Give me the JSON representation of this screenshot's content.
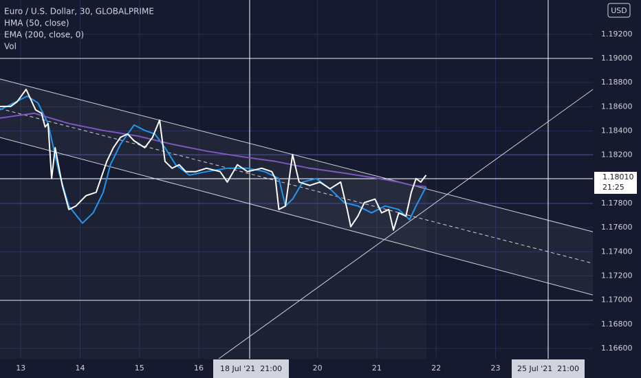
{
  "chart_data": {
    "type": "line",
    "title": "Euro / U.S. Dollar, 30, GLOBALPRIME",
    "volume_label": "Vol",
    "currency": "USD",
    "last_price": "1.18010",
    "countdown": "21:25",
    "crosshair_labels": [
      "18 Jul '21  21:00",
      "25 Jul '21  21:00"
    ],
    "xlim": [
      -0.35,
      9.64
    ],
    "xticks": [
      {
        "value": 0,
        "label": "13"
      },
      {
        "value": 1,
        "label": "14"
      },
      {
        "value": 2,
        "label": "15"
      },
      {
        "value": 3,
        "label": "16"
      },
      {
        "value": 5,
        "label": "20"
      },
      {
        "value": 6,
        "label": "21"
      },
      {
        "value": 7,
        "label": "22"
      },
      {
        "value": 8,
        "label": "23"
      }
    ],
    "ylim": [
      1.16515,
      1.19483
    ],
    "yticks": [
      {
        "value": 1.166,
        "label": "1.16600"
      },
      {
        "value": 1.168,
        "label": "1.16800"
      },
      {
        "value": 1.17,
        "label": "1.17000"
      },
      {
        "value": 1.172,
        "label": "1.17200"
      },
      {
        "value": 1.174,
        "label": "1.17400"
      },
      {
        "value": 1.176,
        "label": "1.17600"
      },
      {
        "value": 1.178,
        "label": "1.17800"
      },
      {
        "value": 1.182,
        "label": "1.18200"
      },
      {
        "value": 1.184,
        "label": "1.18400"
      },
      {
        "value": 1.186,
        "label": "1.18600"
      },
      {
        "value": 1.188,
        "label": "1.18800"
      },
      {
        "value": 1.19,
        "label": "1.19000"
      },
      {
        "value": 1.192,
        "label": "1.19200"
      }
    ],
    "grid": true,
    "price": {
      "color": "#ffffff",
      "x": [
        -0.35,
        -0.17,
        -0.06,
        0.09,
        0.17,
        0.25,
        0.35,
        0.41,
        0.46,
        0.52,
        0.58,
        0.7,
        0.81,
        0.93,
        1.1,
        1.27,
        1.45,
        1.56,
        1.68,
        1.8,
        1.91,
        2.09,
        2.22,
        2.34,
        2.43,
        2.55,
        2.67,
        2.78,
        2.95,
        3.13,
        3.36,
        3.48,
        3.65,
        3.82,
        4.06,
        4.23,
        4.29,
        4.35,
        4.46,
        4.58,
        4.69,
        4.87,
        5.04,
        5.21,
        5.39,
        5.5,
        5.56,
        5.68,
        5.79,
        5.97,
        6.08,
        6.2,
        6.28,
        6.37,
        6.49,
        6.58,
        6.66,
        6.74,
        6.83
      ],
      "values": [
        1.18602,
        1.18602,
        1.18642,
        1.18744,
        1.18659,
        1.18574,
        1.18546,
        1.18432,
        1.1846,
        1.18006,
        1.18261,
        1.17949,
        1.1775,
        1.17779,
        1.17864,
        1.17892,
        1.18148,
        1.18261,
        1.18347,
        1.18375,
        1.18318,
        1.18261,
        1.18347,
        1.18489,
        1.18148,
        1.18091,
        1.1812,
        1.18063,
        1.18063,
        1.18091,
        1.18063,
        1.17977,
        1.1812,
        1.18063,
        1.18091,
        1.18063,
        1.18006,
        1.1775,
        1.17779,
        1.18205,
        1.17977,
        1.17949,
        1.17977,
        1.17921,
        1.17977,
        1.1775,
        1.17608,
        1.17694,
        1.17807,
        1.17836,
        1.17722,
        1.1775,
        1.1758,
        1.17722,
        1.17694,
        1.17892,
        1.18006,
        1.17977,
        1.18034
      ]
    },
    "series": [
      {
        "name": "HMA (50, close)",
        "color": "#2196f3",
        "x": [
          -0.35,
          0.11,
          0.29,
          0.46,
          0.64,
          0.81,
          1.04,
          1.22,
          1.39,
          1.51,
          1.68,
          1.91,
          2.09,
          2.26,
          2.43,
          2.61,
          2.84,
          3.13,
          3.48,
          3.82,
          4.11,
          4.35,
          4.46,
          4.58,
          4.75,
          4.98,
          5.21,
          5.45,
          5.68,
          5.91,
          6.14,
          6.37,
          6.55,
          6.66,
          6.83
        ],
        "values": [
          1.18574,
          1.18688,
          1.18631,
          1.18461,
          1.18063,
          1.17779,
          1.17637,
          1.17722,
          1.17892,
          1.1812,
          1.1829,
          1.18449,
          1.18404,
          1.18375,
          1.18261,
          1.1812,
          1.18034,
          1.18063,
          1.18091,
          1.18091,
          1.18063,
          1.18006,
          1.17779,
          1.17836,
          1.17977,
          1.18006,
          1.17921,
          1.17807,
          1.17779,
          1.17722,
          1.17779,
          1.1775,
          1.17665,
          1.17779,
          1.17938
        ]
      },
      {
        "name": "EMA (200, close, 0)",
        "color": "#7e57c2",
        "x": [
          -0.35,
          0.23,
          0.81,
          1.39,
          1.97,
          2.55,
          3.13,
          3.71,
          4.29,
          4.87,
          5.45,
          6.03,
          6.37,
          6.6,
          6.83
        ],
        "values": [
          1.18506,
          1.18546,
          1.18461,
          1.18404,
          1.18358,
          1.1829,
          1.18233,
          1.18188,
          1.18148,
          1.18091,
          1.18051,
          1.18006,
          1.17977,
          1.17949,
          1.17938
        ]
      }
    ]
  }
}
